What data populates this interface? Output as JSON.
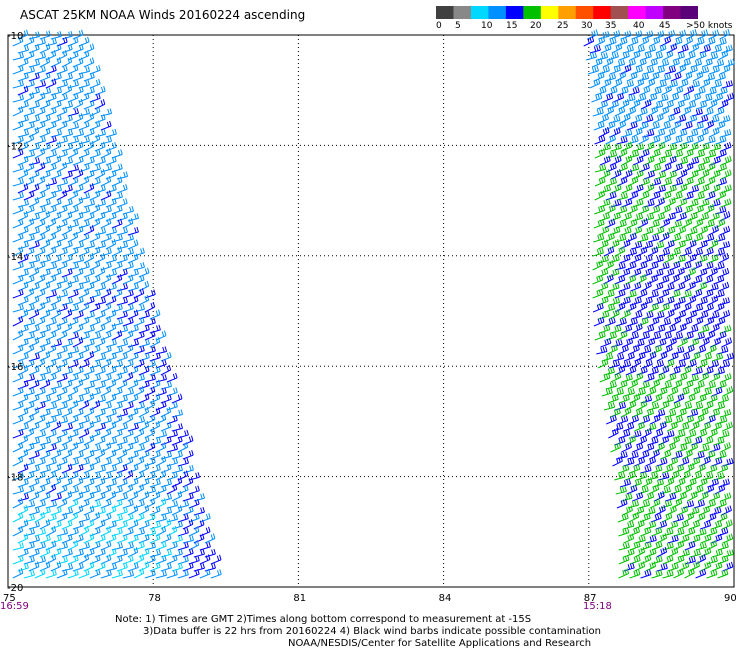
{
  "header": {
    "title": "ASCAT 25KM NOAA Winds 20160224 ascending"
  },
  "colorbar": {
    "colors": [
      "#404040",
      "#888888",
      "#00d8ff",
      "#0090ff",
      "#0000ff",
      "#00c000",
      "#ffff00",
      "#ffa000",
      "#ff5000",
      "#ff0000",
      "#a05050",
      "#ff00ff",
      "#c000ff",
      "#800080",
      "#5a0078"
    ],
    "labels": [
      "0",
      "5",
      "10",
      "15",
      "20",
      "25",
      "30",
      "35",
      "40",
      "45",
      ">50 knots"
    ]
  },
  "map": {
    "lat_labels": [
      "-10",
      "-12",
      "-14",
      "-16",
      "-18",
      "-20"
    ],
    "lon_labels": [
      "75",
      "78",
      "81",
      "84",
      "87",
      "90"
    ],
    "lat_range": [
      -20,
      -10
    ],
    "lon_range": [
      75,
      90
    ],
    "grid": true,
    "time_labels": {
      "left_swath": "16:59",
      "right_swath": "15:18"
    },
    "swaths": [
      {
        "name": "left",
        "time": "16:59",
        "dominant_speed_knots": "10-15",
        "bounds_lon": [
          75,
          79.5
        ]
      },
      {
        "name": "right",
        "time": "15:18",
        "dominant_speed_knots": "15-20",
        "bounds_lon": [
          86.8,
          90
        ]
      }
    ]
  },
  "notes": {
    "line1": "Note: 1) Times are GMT 2)Times along bottom correspond to measurement at -15S",
    "line2": "3)Data buffer is 22 hrs from 20160224 4) Black wind barbs indicate possible contamination",
    "line3": "NOAA/NESDIS/Center for Satellite Applications and Research"
  }
}
